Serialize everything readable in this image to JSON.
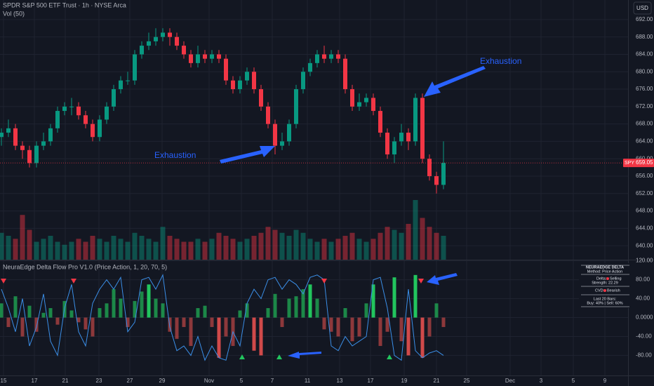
{
  "header": {
    "currency": "USD"
  },
  "chart_data": [
    {
      "type": "candlestick",
      "title": "SPDR S&P 500 ETF Trust · 1h · NYSE Arca",
      "open": [
        665,
        666,
        667,
        663,
        662,
        659,
        663,
        664,
        667,
        671,
        672,
        672,
        670,
        668,
        665,
        669,
        672,
        676,
        678,
        678,
        684,
        686,
        687,
        688,
        689,
        688,
        686,
        684,
        682,
        684,
        683,
        684,
        683,
        678,
        676,
        678,
        680,
        676,
        672,
        668,
        663,
        664,
        668,
        676,
        680,
        682,
        684,
        683,
        684,
        683,
        676,
        672,
        673,
        674,
        671,
        666,
        661,
        664,
        666,
        664,
        674,
        660,
        656,
        654
      ],
      "high": [
        667,
        669,
        668,
        664,
        663,
        664,
        666,
        668,
        672,
        673,
        674,
        673,
        671,
        669,
        670,
        673,
        677,
        679,
        680,
        685,
        687,
        689,
        690,
        690,
        690,
        689,
        687,
        685,
        686,
        685,
        685,
        685,
        684,
        679,
        679,
        681,
        681,
        677,
        673,
        669,
        666,
        669,
        677,
        681,
        683,
        685,
        686,
        685,
        685,
        684,
        677,
        675,
        675,
        675,
        672,
        667,
        665,
        668,
        667,
        675,
        675,
        661,
        657,
        664
      ],
      "low": [
        663,
        665,
        662,
        660,
        658,
        658,
        662,
        663,
        666,
        670,
        670,
        669,
        667,
        664,
        664,
        668,
        671,
        675,
        677,
        677,
        683,
        685,
        686,
        687,
        686,
        685,
        683,
        681,
        681,
        682,
        682,
        682,
        677,
        675,
        675,
        677,
        675,
        671,
        667,
        661,
        662,
        663,
        667,
        675,
        679,
        681,
        682,
        682,
        682,
        675,
        671,
        671,
        672,
        670,
        665,
        660,
        659,
        663,
        662,
        663,
        659,
        655,
        652,
        653
      ],
      "close": [
        666,
        667,
        663,
        662,
        659,
        663,
        664,
        667,
        671,
        672,
        672,
        670,
        668,
        665,
        669,
        672,
        676,
        678,
        678,
        684,
        686,
        687,
        688,
        689,
        688,
        686,
        684,
        682,
        684,
        683,
        684,
        683,
        678,
        676,
        678,
        680,
        676,
        672,
        668,
        663,
        664,
        668,
        676,
        680,
        682,
        684,
        683,
        684,
        683,
        676,
        672,
        673,
        674,
        671,
        666,
        661,
        664,
        666,
        664,
        674,
        660,
        656,
        654,
        659.05
      ],
      "up_color": "#089981",
      "down_color": "#f23645",
      "volume": {
        "name": "Vol (50)",
        "values": [
          45,
          40,
          35,
          75,
          50,
          30,
          35,
          40,
          30,
          25,
          30,
          35,
          30,
          40,
          35,
          30,
          40,
          35,
          30,
          45,
          40,
          35,
          30,
          55,
          40,
          35,
          30,
          30,
          35,
          30,
          35,
          45,
          40,
          35,
          30,
          35,
          40,
          45,
          55,
          50,
          45,
          40,
          50,
          45,
          35,
          30,
          35,
          30,
          35,
          40,
          45,
          35,
          30,
          35,
          45,
          55,
          50,
          45,
          60,
          100,
          70,
          55,
          45,
          40
        ]
      },
      "last_price": {
        "symbol": "SPY",
        "value": 659.05,
        "label": "659.05"
      },
      "annotations": [
        "Exhaustion",
        "Exhaustion"
      ],
      "xlim": [
        -0.2,
        89.3
      ],
      "ylim": [
        636.8,
        696.5
      ],
      "yticks": [
        {
          "value": 640,
          "label": "640.00"
        },
        {
          "value": 644,
          "label": "644.00"
        },
        {
          "value": 648,
          "label": "648.00"
        },
        {
          "value": 652,
          "label": "652.00"
        },
        {
          "value": 656,
          "label": "656.00"
        },
        {
          "value": 660,
          "label": "660.00"
        },
        {
          "value": 664,
          "label": "664.00"
        },
        {
          "value": 668,
          "label": "668.00"
        },
        {
          "value": 672,
          "label": "672.00"
        },
        {
          "value": 676,
          "label": "676.00"
        },
        {
          "value": 680,
          "label": "680.00"
        },
        {
          "value": 684,
          "label": "684.00"
        },
        {
          "value": 688,
          "label": "688.00"
        },
        {
          "value": 692,
          "label": "692.00"
        }
      ],
      "grid": true
    },
    {
      "type": "bar",
      "title": "NeuraEdge Delta Flow Pro V1.0 (Price Action, 1, 20, 70, 5)",
      "series": [
        {
          "type": "bar",
          "positive_color": "#22c55e",
          "negative_color": "#d04a4a",
          "values": [
            30,
            -20,
            45,
            -40,
            25,
            -30,
            10,
            20,
            -15,
            35,
            15,
            -10,
            -25,
            -40,
            20,
            30,
            60,
            40,
            -20,
            35,
            55,
            70,
            40,
            30,
            -30,
            -45,
            -20,
            -60,
            20,
            25,
            -20,
            -85,
            -40,
            -60,
            15,
            30,
            -70,
            -80,
            20,
            50,
            -20,
            40,
            45,
            60,
            70,
            40,
            -25,
            -30,
            -40,
            20,
            -50,
            -40,
            30,
            70,
            -60,
            -30,
            85,
            -50,
            -80,
            90,
            -85,
            -40,
            30,
            -20
          ]
        },
        {
          "type": "line",
          "color": "#3b8fe8",
          "values": [
            60,
            20,
            -30,
            40,
            -60,
            -20,
            50,
            -50,
            -80,
            20,
            70,
            -30,
            -60,
            30,
            60,
            80,
            60,
            85,
            -30,
            -10,
            80,
            85,
            60,
            90,
            -20,
            -70,
            -60,
            -80,
            -40,
            -90,
            -60,
            -85,
            -90,
            -30,
            -60,
            30,
            60,
            40,
            80,
            85,
            60,
            80,
            70,
            50,
            85,
            90,
            80,
            -60,
            -70,
            -40,
            -60,
            -50,
            -40,
            80,
            85,
            20,
            -80,
            -90,
            60,
            -70,
            -85,
            -75,
            -70,
            -80
          ]
        }
      ],
      "info_box": [
        "NEURAEDGE DELTA",
        "Method: Price Action",
        "Delta:",
        "Selling",
        "Strength: 22.29",
        "CVD:",
        "Bearish",
        "Last 20 Bars:",
        "Buy: 40% | Sell: 60%"
      ],
      "xlim": [
        -0.2,
        89.3
      ],
      "xticks": [
        {
          "value": 0.3,
          "label": "15"
        },
        {
          "value": 4.7,
          "label": "17"
        },
        {
          "value": 9.1,
          "label": "21"
        },
        {
          "value": 13.9,
          "label": "23"
        },
        {
          "value": 18.3,
          "label": "27"
        },
        {
          "value": 22.9,
          "label": "29"
        },
        {
          "value": 29.6,
          "label": "Nov"
        },
        {
          "value": 34.2,
          "label": "5"
        },
        {
          "value": 38.6,
          "label": "7"
        },
        {
          "value": 43.6,
          "label": "11"
        },
        {
          "value": 48.2,
          "label": "13"
        },
        {
          "value": 52.6,
          "label": "17"
        },
        {
          "value": 57.4,
          "label": "19"
        },
        {
          "value": 62,
          "label": "21"
        },
        {
          "value": 66.3,
          "label": "25"
        },
        {
          "value": 72.5,
          "label": "Dec"
        },
        {
          "value": 76.9,
          "label": "3"
        },
        {
          "value": 81.5,
          "label": "5"
        },
        {
          "value": 86,
          "label": "9"
        }
      ],
      "ylim": [
        -122.4,
        120.9
      ],
      "yticks": [
        {
          "value": 120,
          "label": "120.00"
        },
        {
          "value": 80,
          "label": "80.00"
        },
        {
          "value": 40,
          "label": "40.00"
        },
        {
          "value": 0,
          "label": "0.0000"
        },
        {
          "value": -40,
          "label": "-40.00"
        },
        {
          "value": -80,
          "label": "-80.00"
        }
      ],
      "grid": true
    }
  ]
}
